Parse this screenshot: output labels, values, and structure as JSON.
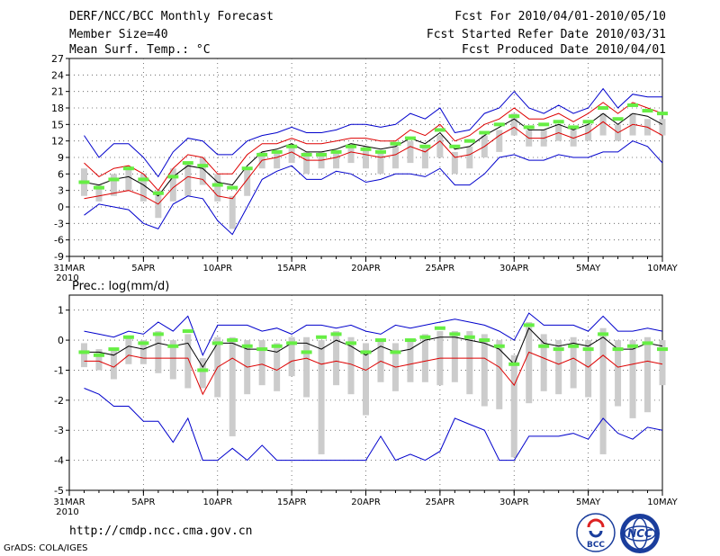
{
  "header": {
    "title": "DERF/NCC/BCC Monthly Forecast",
    "member_size": "Member Size=40",
    "variable": "Mean Surf. Temp.: °C",
    "forecast_period": "Fcst For 2010/04/01-2010/05/10",
    "started_refer_date": "Fcst Started Refer Date 2010/03/31",
    "produced_date": "Fcst Produced Date 2010/04/01"
  },
  "footer": {
    "url": "http://cmdp.ncc.cma.gov.cn",
    "credit": "GrADS: COLA/IGES",
    "logo_bcc": "BCC",
    "logo_ncc": "NCC"
  },
  "colors": {
    "ensemble_max_min": "#0000cc",
    "spread": "#dd0000",
    "mean": "#000000",
    "climate_marker": "#66ee44",
    "member_range": "#cccccc",
    "grid": "#555555"
  },
  "chart_data": [
    {
      "type": "line",
      "title": "Mean Surf. Temp.: °C",
      "x_tick_labels": [
        "31MAR",
        "5APR",
        "10APR",
        "15APR",
        "20APR",
        "25APR",
        "30APR",
        "5MAY",
        "10MAY"
      ],
      "x_sub_label": "2010",
      "ylim": [
        -9,
        27
      ],
      "y_ticks": [
        -9,
        -6,
        -3,
        0,
        3,
        6,
        9,
        12,
        15,
        18,
        21,
        24,
        27
      ],
      "x_days": [
        1,
        2,
        3,
        4,
        5,
        6,
        7,
        8,
        9,
        10,
        11,
        12,
        13,
        14,
        15,
        16,
        17,
        18,
        19,
        20,
        21,
        22,
        23,
        24,
        25,
        26,
        27,
        28,
        29,
        30,
        31,
        32,
        33,
        34,
        35,
        36,
        37,
        38,
        39,
        40
      ],
      "series": [
        {
          "name": "ensemble max",
          "values": [
            13,
            9,
            11.5,
            11.5,
            9,
            5.5,
            10,
            12.5,
            12,
            9.5,
            9.5,
            12,
            13,
            13.5,
            14.5,
            13.5,
            13.5,
            14,
            15,
            15,
            14.5,
            15,
            17,
            16,
            18,
            13.5,
            14,
            17,
            18,
            21,
            18,
            17,
            18.5,
            17,
            18,
            21.5,
            18,
            20.5,
            20,
            20
          ]
        },
        {
          "name": "spread upper",
          "values": [
            8,
            5.5,
            7,
            7.5,
            6,
            3,
            7,
            9.5,
            9,
            6,
            6,
            9.5,
            11.5,
            11.5,
            12.5,
            11.5,
            11.5,
            12,
            12.5,
            12.5,
            12,
            12,
            14,
            13,
            15,
            12,
            13,
            15,
            16,
            18,
            16,
            16,
            17,
            15.5,
            17,
            19,
            17,
            19,
            18,
            17
          ]
        },
        {
          "name": "ensemble mean",
          "values": [
            4.5,
            4,
            5,
            5.5,
            4,
            2,
            5.5,
            7.5,
            7,
            4.5,
            4,
            7.5,
            10,
            10.5,
            11.5,
            10,
            10,
            10.5,
            11.5,
            11,
            10.5,
            11,
            12.5,
            11.5,
            13.5,
            10.5,
            11,
            13,
            14.5,
            16,
            14,
            14,
            15,
            14,
            15,
            17,
            15,
            17,
            16.5,
            15
          ]
        },
        {
          "name": "spread lower",
          "values": [
            1.5,
            2,
            2.5,
            3,
            2,
            0.5,
            3.5,
            5.5,
            5,
            2,
            1.5,
            5,
            8.5,
            9,
            10,
            8.5,
            8.5,
            9,
            10,
            9.5,
            9,
            9.5,
            11,
            10,
            12,
            9,
            9.5,
            11,
            13,
            14.5,
            12.5,
            12.5,
            13.5,
            12.5,
            13.5,
            15.5,
            13.5,
            15,
            14.5,
            13
          ]
        },
        {
          "name": "ensemble min",
          "values": [
            -1.5,
            0.5,
            0,
            -0.5,
            -3,
            -4,
            0.5,
            2,
            1.5,
            -2.5,
            -5,
            0,
            5,
            6.5,
            7.5,
            5,
            5,
            6.5,
            6,
            4.5,
            5,
            6,
            6,
            5.5,
            7,
            4,
            4,
            6,
            9,
            9.5,
            8.5,
            8.5,
            9.5,
            9,
            9,
            10,
            10,
            12,
            11,
            8
          ]
        },
        {
          "name": "member range top",
          "values": [
            7,
            4,
            6,
            7,
            6,
            3,
            7,
            8,
            9,
            6,
            2,
            7,
            10,
            10,
            11,
            10,
            10,
            10,
            11,
            11,
            10,
            11,
            12,
            11,
            13,
            10,
            11,
            13,
            14,
            17,
            14,
            14,
            15,
            14,
            15,
            17,
            15,
            17,
            16,
            16
          ]
        },
        {
          "name": "member range bottom",
          "values": [
            2,
            1,
            2,
            3,
            1,
            -2,
            1,
            2,
            4,
            1,
            -4,
            2,
            7,
            7,
            8,
            6,
            7,
            7,
            8,
            7,
            6,
            7,
            8,
            7,
            9,
            6,
            7,
            9,
            10,
            13,
            11,
            11,
            12,
            11,
            12,
            13,
            12,
            13,
            13,
            13
          ]
        },
        {
          "name": "climate",
          "values": [
            4.5,
            3.5,
            5,
            7,
            5,
            2.5,
            5.5,
            8,
            7.5,
            4,
            3.5,
            7,
            9.5,
            10,
            11,
            9.5,
            9.5,
            10,
            11,
            10.5,
            10,
            11.5,
            12.5,
            11,
            14,
            11,
            12,
            13.5,
            15,
            16.5,
            14.5,
            15,
            15.5,
            14.5,
            15.5,
            18,
            16,
            18.5,
            17.5,
            17
          ]
        }
      ]
    },
    {
      "type": "line",
      "title": "Prec.: log(mm/d)",
      "x_tick_labels": [
        "31MAR",
        "5APR",
        "10APR",
        "15APR",
        "20APR",
        "25APR",
        "30APR",
        "5MAY",
        "10MAY"
      ],
      "x_sub_label": "2010",
      "ylim": [
        -5,
        1.5
      ],
      "y_ticks": [
        -5,
        -4,
        -3,
        -2,
        -1,
        0,
        1
      ],
      "x_days": [
        1,
        2,
        3,
        4,
        5,
        6,
        7,
        8,
        9,
        10,
        11,
        12,
        13,
        14,
        15,
        16,
        17,
        18,
        19,
        20,
        21,
        22,
        23,
        24,
        25,
        26,
        27,
        28,
        29,
        30,
        31,
        32,
        33,
        34,
        35,
        36,
        37,
        38,
        39,
        40
      ],
      "series": [
        {
          "name": "ensemble max",
          "values": [
            0.3,
            0.2,
            0.1,
            0.3,
            0.2,
            0.6,
            0.3,
            0.8,
            -0.5,
            0.5,
            0.5,
            0.5,
            0.3,
            0.4,
            0.2,
            0.5,
            0.5,
            0.4,
            0.5,
            0.3,
            0.2,
            0.5,
            0.4,
            0.5,
            0.6,
            0.7,
            0.6,
            0.5,
            0.3,
            0.0,
            0.9,
            0.5,
            0.5,
            0.5,
            0.3,
            0.8,
            0.3,
            0.3,
            0.4,
            0.3
          ]
        },
        {
          "name": "ensemble mean",
          "values": [
            -0.4,
            -0.4,
            -0.5,
            -0.2,
            -0.3,
            -0.1,
            -0.2,
            -0.1,
            -0.9,
            -0.1,
            -0.1,
            -0.3,
            -0.3,
            -0.4,
            -0.1,
            -0.1,
            -0.3,
            0.0,
            -0.2,
            -0.5,
            -0.2,
            -0.4,
            -0.3,
            0.0,
            0.1,
            0.1,
            0.0,
            -0.1,
            -0.3,
            -0.8,
            0.4,
            -0.1,
            -0.2,
            -0.1,
            -0.2,
            0.1,
            -0.3,
            -0.3,
            -0.1,
            -0.2
          ]
        },
        {
          "name": "ensemble min",
          "values": [
            -1.6,
            -1.8,
            -2.2,
            -2.2,
            -2.7,
            -2.7,
            -3.4,
            -2.6,
            -4.0,
            -4.0,
            -3.6,
            -4.0,
            -3.5,
            -4.0,
            -4.0,
            -4.0,
            -4.0,
            -4.0,
            -4.0,
            -4.0,
            -3.2,
            -4.0,
            -3.8,
            -4.0,
            -3.7,
            -2.6,
            -2.8,
            -3.0,
            -4.0,
            -4.0,
            -3.2,
            -3.2,
            -3.2,
            -3.1,
            -3.3,
            -2.6,
            -3.1,
            -3.3,
            -2.9,
            -3.0
          ]
        },
        {
          "name": "spread lower",
          "values": [
            -0.7,
            -0.7,
            -0.9,
            -0.5,
            -0.6,
            -0.6,
            -0.6,
            -0.6,
            -1.8,
            -0.9,
            -0.6,
            -0.9,
            -0.8,
            -1.0,
            -0.7,
            -0.6,
            -0.8,
            -0.7,
            -0.8,
            -1.0,
            -0.7,
            -0.9,
            -0.8,
            -0.7,
            -0.6,
            -0.6,
            -0.6,
            -0.6,
            -0.9,
            -1.5,
            -0.4,
            -0.6,
            -0.8,
            -0.6,
            -0.9,
            -0.5,
            -0.9,
            -0.8,
            -0.7,
            -0.8
          ]
        },
        {
          "name": "member range top",
          "values": [
            -0.1,
            -0.3,
            -0.3,
            0.1,
            0.0,
            0.3,
            0.0,
            0.2,
            -0.6,
            0.1,
            0.1,
            0.0,
            0.0,
            -0.1,
            0.1,
            0.1,
            0.0,
            0.3,
            0.1,
            -0.1,
            0.0,
            -0.1,
            0.0,
            0.2,
            0.3,
            0.3,
            0.3,
            0.2,
            0.0,
            -0.5,
            0.6,
            0.2,
            0.0,
            0.1,
            0.0,
            0.4,
            0.0,
            0.0,
            0.1,
            0.0
          ]
        },
        {
          "name": "member range bottom",
          "values": [
            -0.9,
            -1.0,
            -1.3,
            -0.8,
            -0.8,
            -1.1,
            -1.3,
            -1.6,
            -1.6,
            -1.9,
            -3.2,
            -1.8,
            -1.5,
            -1.7,
            -1.2,
            -1.9,
            -3.8,
            -1.5,
            -1.8,
            -2.5,
            -1.4,
            -1.7,
            -1.4,
            -1.4,
            -1.5,
            -1.4,
            -1.8,
            -2.2,
            -2.3,
            -3.9,
            -2.1,
            -1.7,
            -1.8,
            -1.6,
            -1.9,
            -3.8,
            -2.2,
            -2.6,
            -2.4,
            -1.5
          ]
        },
        {
          "name": "climate",
          "values": [
            -0.4,
            -0.5,
            -0.3,
            0.1,
            -0.1,
            0.2,
            -0.2,
            0.3,
            -1.0,
            -0.1,
            0.0,
            -0.2,
            -0.3,
            -0.2,
            -0.1,
            -0.4,
            0.1,
            0.2,
            -0.1,
            -0.4,
            0.0,
            -0.4,
            0.0,
            0.1,
            0.4,
            0.2,
            0.1,
            0.0,
            -0.2,
            -0.8,
            0.5,
            -0.2,
            -0.3,
            -0.2,
            -0.3,
            0.2,
            -0.3,
            -0.2,
            -0.1,
            -0.3
          ]
        }
      ]
    }
  ]
}
